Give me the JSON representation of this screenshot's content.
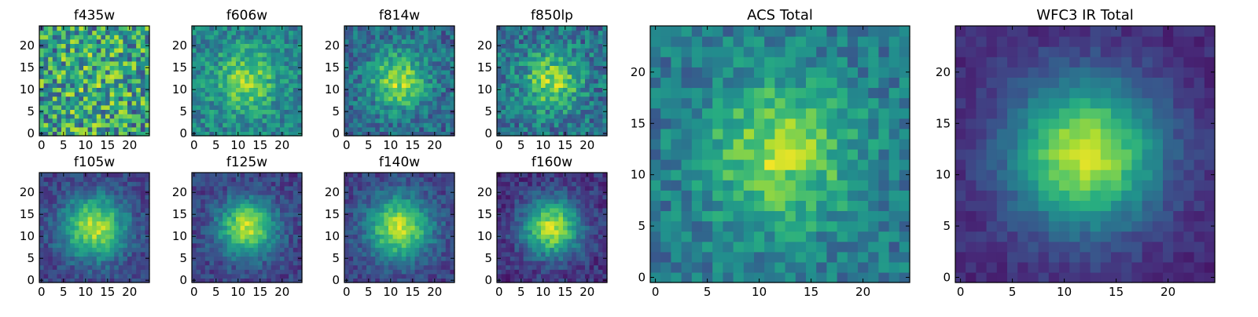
{
  "figure": {
    "colormap": "viridis",
    "panel_frame_color": "#000000",
    "background_color": "#ffffff"
  },
  "chart_data": [
    {
      "type": "heatmap",
      "title": "f435w",
      "x_ticks": [
        "0",
        "5",
        "10",
        "15",
        "20"
      ],
      "y_ticks": [
        "0",
        "5",
        "10",
        "15",
        "20"
      ],
      "xlim": [
        -0.5,
        24.5
      ],
      "ylim": [
        -0.5,
        24.5
      ],
      "grid_size": 25,
      "grid": false,
      "profile": {
        "peak": [
          12,
          12
        ],
        "sigma": 6,
        "amplitude": 0.1,
        "noise": 0.7,
        "base": 0.55,
        "seed": 11
      }
    },
    {
      "type": "heatmap",
      "title": "f606w",
      "x_ticks": [
        "0",
        "5",
        "10",
        "15",
        "20"
      ],
      "y_ticks": [
        "0",
        "5",
        "10",
        "15",
        "20"
      ],
      "xlim": [
        -0.5,
        24.5
      ],
      "ylim": [
        -0.5,
        24.5
      ],
      "grid_size": 25,
      "grid": false,
      "profile": {
        "peak": [
          12,
          12
        ],
        "sigma": 5,
        "amplitude": 0.35,
        "noise": 0.35,
        "base": 0.45,
        "seed": 12
      }
    },
    {
      "type": "heatmap",
      "title": "f814w",
      "x_ticks": [
        "0",
        "5",
        "10",
        "15",
        "20"
      ],
      "y_ticks": [
        "0",
        "5",
        "10",
        "15",
        "20"
      ],
      "xlim": [
        -0.5,
        24.5
      ],
      "ylim": [
        -0.5,
        24.5
      ],
      "grid_size": 25,
      "grid": false,
      "profile": {
        "peak": [
          12,
          12
        ],
        "sigma": 4.5,
        "amplitude": 0.5,
        "noise": 0.35,
        "base": 0.35,
        "seed": 13
      }
    },
    {
      "type": "heatmap",
      "title": "f850lp",
      "x_ticks": [
        "0",
        "5",
        "10",
        "15",
        "20"
      ],
      "y_ticks": [
        "0",
        "5",
        "10",
        "15",
        "20"
      ],
      "xlim": [
        -0.5,
        24.5
      ],
      "ylim": [
        -0.5,
        24.5
      ],
      "grid_size": 25,
      "grid": false,
      "profile": {
        "peak": [
          12,
          12
        ],
        "sigma": 4.5,
        "amplitude": 0.45,
        "noise": 0.4,
        "base": 0.38,
        "seed": 14
      }
    },
    {
      "type": "heatmap",
      "title": "f105w",
      "x_ticks": [
        "0",
        "5",
        "10",
        "15",
        "20"
      ],
      "y_ticks": [
        "0",
        "5",
        "10",
        "15",
        "20"
      ],
      "xlim": [
        -0.5,
        24.5
      ],
      "ylim": [
        -0.5,
        24.5
      ],
      "grid_size": 25,
      "grid": false,
      "profile": {
        "peak": [
          12,
          12
        ],
        "sigma": 5,
        "amplitude": 0.7,
        "noise": 0.22,
        "base": 0.2,
        "seed": 15
      }
    },
    {
      "type": "heatmap",
      "title": "f125w",
      "x_ticks": [
        "0",
        "5",
        "10",
        "15",
        "20"
      ],
      "y_ticks": [
        "0",
        "5",
        "10",
        "15",
        "20"
      ],
      "xlim": [
        -0.5,
        24.5
      ],
      "ylim": [
        -0.5,
        24.5
      ],
      "grid_size": 25,
      "grid": false,
      "profile": {
        "peak": [
          12,
          12
        ],
        "sigma": 4.5,
        "amplitude": 0.7,
        "noise": 0.22,
        "base": 0.2,
        "seed": 16
      }
    },
    {
      "type": "heatmap",
      "title": "f140w",
      "x_ticks": [
        "0",
        "5",
        "10",
        "15",
        "20"
      ],
      "y_ticks": [
        "0",
        "5",
        "10",
        "15",
        "20"
      ],
      "xlim": [
        -0.5,
        24.5
      ],
      "ylim": [
        -0.5,
        24.5
      ],
      "grid_size": 25,
      "grid": false,
      "profile": {
        "peak": [
          12,
          12
        ],
        "sigma": 5,
        "amplitude": 0.7,
        "noise": 0.22,
        "base": 0.2,
        "seed": 17
      }
    },
    {
      "type": "heatmap",
      "title": "f160w",
      "x_ticks": [
        "0",
        "5",
        "10",
        "15",
        "20"
      ],
      "y_ticks": [
        "0",
        "5",
        "10",
        "15",
        "20"
      ],
      "xlim": [
        -0.5,
        24.5
      ],
      "ylim": [
        -0.5,
        24.5
      ],
      "grid_size": 25,
      "grid": false,
      "profile": {
        "peak": [
          12,
          12
        ],
        "sigma": 4.5,
        "amplitude": 0.75,
        "noise": 0.22,
        "base": 0.15,
        "seed": 18
      }
    },
    {
      "type": "heatmap",
      "title": "ACS Total",
      "x_ticks": [
        "0",
        "5",
        "10",
        "15",
        "20"
      ],
      "y_ticks": [
        "0",
        "5",
        "10",
        "15",
        "20"
      ],
      "xlim": [
        -0.5,
        24.5
      ],
      "ylim": [
        -0.5,
        24.5
      ],
      "grid_size": 25,
      "grid": false,
      "profile": {
        "peak": [
          12,
          12
        ],
        "sigma": 5,
        "amplitude": 0.45,
        "noise": 0.3,
        "base": 0.4,
        "seed": 19
      }
    },
    {
      "type": "heatmap",
      "title": "WFC3 IR Total",
      "x_ticks": [
        "0",
        "5",
        "10",
        "15",
        "20"
      ],
      "y_ticks": [
        "0",
        "5",
        "10",
        "15",
        "20"
      ],
      "xlim": [
        -0.5,
        24.5
      ],
      "ylim": [
        -0.5,
        24.5
      ],
      "grid_size": 25,
      "grid": false,
      "profile": {
        "peak": [
          12,
          12
        ],
        "sigma": 5,
        "amplitude": 0.8,
        "noise": 0.12,
        "base": 0.12,
        "seed": 20
      }
    }
  ]
}
